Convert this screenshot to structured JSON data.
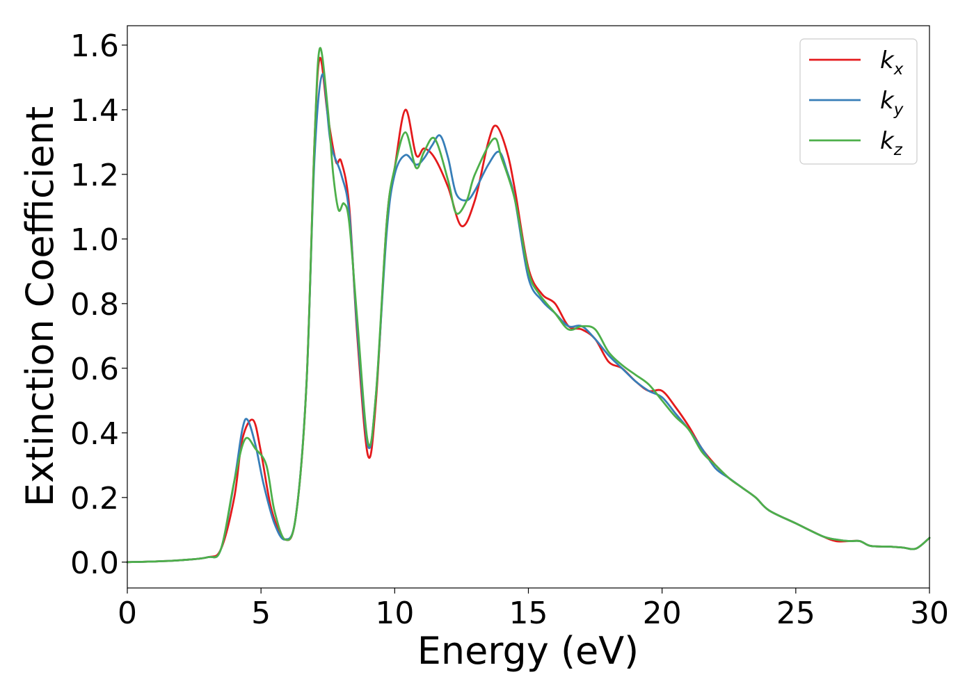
{
  "chart_data": {
    "type": "line",
    "xlabel": "Energy (eV)",
    "ylabel": "Extinction Coefficient",
    "xlim": [
      0,
      30
    ],
    "ylim": [
      -0.08,
      1.66
    ],
    "xticks": [
      0,
      5,
      10,
      15,
      20,
      25,
      30
    ],
    "yticks": [
      0.0,
      0.2,
      0.4,
      0.6,
      0.8,
      1.0,
      1.2,
      1.4,
      1.6
    ],
    "xtick_labels": [
      "0",
      "5",
      "10",
      "15",
      "20",
      "25",
      "30"
    ],
    "ytick_labels": [
      "0.0",
      "0.2",
      "0.4",
      "0.6",
      "0.8",
      "1.0",
      "1.2",
      "1.4",
      "1.6"
    ],
    "grid": false,
    "legend_position": "top-right",
    "series": [
      {
        "name": "k_x",
        "label_base": "k",
        "label_sub": "x",
        "color": "#e41a1c",
        "x": [
          0,
          1,
          2,
          3,
          3.5,
          4,
          4.3,
          4.7,
          5,
          5.4,
          5.9,
          6.3,
          6.7,
          7,
          7.2,
          7.5,
          7.8,
          8,
          8.3,
          8.6,
          9,
          9.3,
          9.7,
          10,
          10.4,
          10.8,
          11.1,
          11.5,
          12,
          12.5,
          13,
          13.5,
          13.8,
          14.2,
          14.5,
          15,
          15.5,
          16,
          16.5,
          17,
          17.5,
          18,
          18.5,
          19,
          19.5,
          20,
          20.5,
          21,
          21.5,
          22,
          22.5,
          23,
          23.5,
          24,
          25,
          26,
          26.5,
          27,
          27.4,
          27.8,
          28.5,
          29,
          29.5,
          30
        ],
        "y": [
          0.0,
          0.002,
          0.006,
          0.015,
          0.04,
          0.2,
          0.38,
          0.44,
          0.34,
          0.16,
          0.07,
          0.14,
          0.55,
          1.3,
          1.56,
          1.38,
          1.24,
          1.24,
          1.1,
          0.7,
          0.33,
          0.5,
          1.05,
          1.22,
          1.4,
          1.26,
          1.28,
          1.25,
          1.16,
          1.04,
          1.12,
          1.3,
          1.35,
          1.27,
          1.15,
          0.91,
          0.83,
          0.8,
          0.73,
          0.72,
          0.69,
          0.62,
          0.6,
          0.56,
          0.53,
          0.53,
          0.48,
          0.42,
          0.35,
          0.3,
          0.26,
          0.23,
          0.2,
          0.16,
          0.12,
          0.08,
          0.065,
          0.065,
          0.065,
          0.05,
          0.048,
          0.045,
          0.042,
          0.075
        ]
      },
      {
        "name": "k_y",
        "label_base": "k",
        "label_sub": "y",
        "color": "#377eb8",
        "x": [
          0,
          1,
          2,
          3,
          3.5,
          4,
          4.3,
          4.5,
          4.8,
          5.1,
          5.5,
          5.9,
          6.3,
          6.7,
          7,
          7.3,
          7.6,
          8,
          8.3,
          8.6,
          9,
          9.3,
          9.7,
          10,
          10.4,
          10.8,
          11.1,
          11.4,
          11.7,
          12,
          12.3,
          12.7,
          13,
          13.5,
          13.9,
          14.2,
          14.5,
          15,
          15.5,
          16,
          16.5,
          17,
          17.5,
          18,
          18.5,
          19,
          19.5,
          20,
          20.5,
          21,
          21.5,
          22,
          22.5,
          23,
          23.5,
          24,
          25,
          26,
          26.5,
          27,
          27.4,
          27.8,
          28.5,
          29,
          29.5,
          30
        ],
        "y": [
          0.0,
          0.002,
          0.006,
          0.015,
          0.04,
          0.25,
          0.41,
          0.44,
          0.36,
          0.24,
          0.12,
          0.07,
          0.14,
          0.55,
          1.25,
          1.51,
          1.3,
          1.2,
          1.08,
          0.72,
          0.36,
          0.52,
          1.02,
          1.2,
          1.26,
          1.23,
          1.25,
          1.29,
          1.32,
          1.25,
          1.14,
          1.12,
          1.15,
          1.23,
          1.27,
          1.21,
          1.12,
          0.88,
          0.81,
          0.77,
          0.73,
          0.73,
          0.69,
          0.64,
          0.6,
          0.56,
          0.53,
          0.51,
          0.46,
          0.41,
          0.35,
          0.29,
          0.26,
          0.23,
          0.2,
          0.16,
          0.12,
          0.08,
          0.07,
          0.065,
          0.065,
          0.05,
          0.048,
          0.045,
          0.042,
          0.075
        ]
      },
      {
        "name": "k_z",
        "label_base": "k",
        "label_sub": "z",
        "color": "#4daf4a",
        "x": [
          0,
          1,
          2,
          3,
          3.5,
          4,
          4.4,
          4.8,
          5.2,
          5.5,
          5.9,
          6.3,
          6.7,
          7,
          7.2,
          7.5,
          7.7,
          7.9,
          8.1,
          8.3,
          8.6,
          9,
          9.3,
          9.7,
          10,
          10.4,
          10.8,
          11.1,
          11.5,
          12,
          12.3,
          12.7,
          13,
          13.7,
          14,
          14.5,
          15,
          15.4,
          16,
          16.5,
          17,
          17.5,
          18,
          18.5,
          19,
          19.5,
          20,
          20.5,
          21,
          21.5,
          22,
          22.5,
          23,
          23.5,
          24,
          25,
          26,
          26.5,
          27,
          27.4,
          27.8,
          28.5,
          29,
          29.5,
          30
        ],
        "y": [
          0.0,
          0.002,
          0.006,
          0.015,
          0.04,
          0.25,
          0.38,
          0.35,
          0.3,
          0.16,
          0.07,
          0.14,
          0.55,
          1.3,
          1.59,
          1.4,
          1.2,
          1.09,
          1.11,
          1.05,
          0.75,
          0.37,
          0.52,
          1.05,
          1.22,
          1.33,
          1.22,
          1.27,
          1.31,
          1.18,
          1.08,
          1.12,
          1.2,
          1.31,
          1.25,
          1.12,
          0.9,
          0.83,
          0.77,
          0.72,
          0.73,
          0.72,
          0.65,
          0.61,
          0.58,
          0.55,
          0.5,
          0.45,
          0.41,
          0.34,
          0.3,
          0.26,
          0.23,
          0.2,
          0.16,
          0.12,
          0.08,
          0.07,
          0.065,
          0.065,
          0.05,
          0.048,
          0.045,
          0.042,
          0.075
        ]
      }
    ]
  }
}
